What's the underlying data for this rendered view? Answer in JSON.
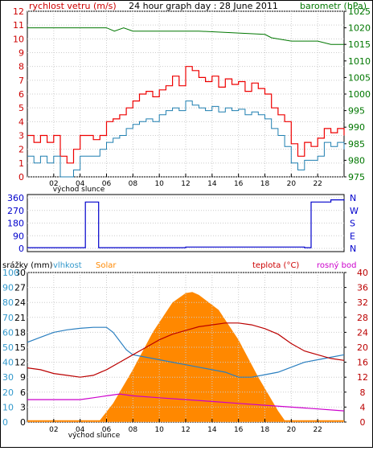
{
  "title": "24 hour graph day : 28 June 2011",
  "colors": {
    "wind_axis": "#cc0000",
    "baro_axis": "#007700",
    "gust": "#ee0000",
    "wind": "#1f7fb0",
    "baro": "#007700",
    "dir": "#0000cc",
    "rain_axis": "#3399cc",
    "humidity": "#2a7fc0",
    "solar": "#ff8800",
    "temp": "#bb0000",
    "dew": "#cc00cc",
    "grid": "#aaaaaa"
  },
  "chart_data": [
    {
      "type": "line",
      "labels": {
        "left": "rychlost vetru (m/s)",
        "right": "barometr (hPa)",
        "x_label": "východ slunce"
      },
      "x_ticks": [
        "02",
        "04",
        "06",
        "08",
        "10",
        "12",
        "14",
        "16",
        "18",
        "20",
        "22"
      ],
      "y_left_ticks": [
        "0",
        "1",
        "2",
        "3",
        "4",
        "5",
        "6",
        "7",
        "8",
        "9",
        "10",
        "11",
        "12"
      ],
      "y_right_ticks": [
        "975",
        "980",
        "985",
        "990",
        "995",
        "1000",
        "1005",
        "1010",
        "1015",
        "1020",
        "1025"
      ],
      "ylim_left": [
        0,
        12
      ],
      "ylim_right": [
        975,
        1025
      ],
      "xlim": [
        0,
        24
      ],
      "series": [
        {
          "key": "gust",
          "axis": "left",
          "x": [
            0,
            0.5,
            1,
            1.5,
            2,
            2.5,
            3,
            3.5,
            4,
            4.5,
            5,
            5.5,
            6,
            6.5,
            7,
            7.5,
            8,
            8.5,
            9,
            9.5,
            10,
            10.5,
            11,
            11.5,
            12,
            12.5,
            13,
            13.5,
            14,
            14.5,
            15,
            15.5,
            16,
            16.5,
            17,
            17.5,
            18,
            18.5,
            19,
            19.5,
            20,
            20.5,
            21,
            21.5,
            22,
            22.5,
            23,
            23.5,
            24
          ],
          "values": [
            3,
            2.5,
            3,
            2.5,
            3,
            1.5,
            1,
            2,
            3,
            3,
            2.7,
            3,
            4,
            4.2,
            4.5,
            5,
            5.5,
            6,
            6.2,
            5.8,
            6.3,
            6.6,
            7.3,
            6.6,
            8,
            7.7,
            7.2,
            6.9,
            7.3,
            6.5,
            7.1,
            6.7,
            6.9,
            6.2,
            6.8,
            6.4,
            6,
            5,
            4.5,
            4,
            2.4,
            1.5,
            2.5,
            2.2,
            2.8,
            3.5,
            3.2,
            3.5,
            3
          ]
        },
        {
          "key": "wind",
          "axis": "left",
          "x": [
            0,
            0.5,
            1,
            1.5,
            2,
            2.5,
            3,
            3.5,
            4,
            4.5,
            5,
            5.5,
            6,
            6.5,
            7,
            7.5,
            8,
            8.5,
            9,
            9.5,
            10,
            10.5,
            11,
            11.5,
            12,
            12.5,
            13,
            13.5,
            14,
            14.5,
            15,
            15.5,
            16,
            16.5,
            17,
            17.5,
            18,
            18.5,
            19,
            19.5,
            20,
            20.5,
            21,
            21.5,
            22,
            22.5,
            23,
            23.5,
            24
          ],
          "values": [
            1.5,
            1,
            1.5,
            1,
            1.5,
            0,
            0,
            0.5,
            1.5,
            1.5,
            1.5,
            2,
            2.5,
            2.8,
            3,
            3.5,
            3.8,
            4,
            4.2,
            4,
            4.5,
            4.8,
            5,
            4.8,
            5.5,
            5.2,
            5,
            4.8,
            5.1,
            4.7,
            5,
            4.8,
            4.9,
            4.5,
            4.7,
            4.5,
            4.2,
            3.5,
            3,
            2.2,
            1,
            0.5,
            1.2,
            1.2,
            1.5,
            2.5,
            2.2,
            2.5,
            2
          ]
        },
        {
          "key": "baro",
          "axis": "right",
          "x": [
            0,
            6,
            6.6,
            7.3,
            8,
            13,
            18,
            18.5,
            20,
            22,
            23,
            24
          ],
          "values": [
            1020,
            1020,
            1019,
            1020,
            1019,
            1019,
            1018,
            1017,
            1016,
            1016,
            1015,
            1015
          ]
        }
      ]
    },
    {
      "type": "line",
      "labels": {
        "right_axis": [
          "N",
          "W",
          "S",
          "E",
          "N"
        ]
      },
      "y_left_ticks": [
        "0",
        "90",
        "180",
        "270",
        "360"
      ],
      "ylim": [
        0,
        360
      ],
      "xlim": [
        0,
        24
      ],
      "series": [
        {
          "key": "dir",
          "x": [
            0,
            4.2,
            4.4,
            5.2,
            5.4,
            12,
            13,
            21,
            21.5,
            23,
            24
          ],
          "values": [
            5,
            5,
            330,
            330,
            5,
            10,
            10,
            5,
            330,
            345,
            340
          ]
        }
      ]
    },
    {
      "type": "line",
      "labels": {
        "rain": "srážky (mm)",
        "humidity": "vlhkost",
        "solar": "Solar",
        "temp": "teplota (°C)",
        "dew": "rosný bod",
        "x_label": "východ slunce"
      },
      "x_ticks": [
        "02",
        "04",
        "06",
        "08",
        "10",
        "12",
        "14",
        "16",
        "18",
        "20",
        "22"
      ],
      "y_rain_ticks": [
        "0",
        "3",
        "6",
        "9",
        "12",
        "15",
        "18",
        "21",
        "24",
        "27",
        "30"
      ],
      "y_hum_ticks": [
        "0",
        "10",
        "20",
        "30",
        "40",
        "50",
        "60",
        "70",
        "80",
        "90",
        "100"
      ],
      "y_temp_ticks": [
        "0",
        "4",
        "8",
        "12",
        "16",
        "20",
        "24",
        "28",
        "32",
        "36",
        "40"
      ],
      "ylim_rain": [
        0,
        30
      ],
      "ylim_temp": [
        0,
        40
      ],
      "xlim": [
        0,
        24
      ],
      "series": [
        {
          "key": "solar",
          "axis": "temp",
          "x": [
            0,
            5.5,
            6.5,
            8,
            9.5,
            11,
            12,
            12.5,
            13,
            14.5,
            16,
            17.5,
            19,
            19.5,
            20,
            24
          ],
          "values": [
            0.5,
            0.5,
            5,
            14,
            24,
            32,
            34.5,
            34.8,
            34,
            30,
            22,
            12,
            3,
            0.5,
            0.5,
            0.5
          ]
        },
        {
          "key": "humidity",
          "axis": "rain",
          "x": [
            0,
            1,
            2,
            3,
            4,
            5,
            6,
            6.5,
            7.5,
            8,
            9,
            10,
            11,
            12,
            13,
            14,
            15,
            16,
            17,
            18,
            19,
            20,
            21,
            22,
            23,
            24
          ],
          "values": [
            16,
            17,
            18,
            18.5,
            18.8,
            19,
            19,
            18,
            14.5,
            13.5,
            13,
            12.5,
            12,
            11.5,
            11,
            10.5,
            10,
            9,
            9,
            9.5,
            10,
            11,
            12,
            12.5,
            13,
            13.5
          ]
        },
        {
          "key": "temp",
          "axis": "temp",
          "x": [
            0,
            1,
            2,
            3,
            4,
            5,
            6,
            7,
            8,
            9,
            10,
            11,
            12,
            13,
            14,
            15,
            16,
            17,
            18,
            19,
            20,
            21,
            22,
            23,
            24
          ],
          "values": [
            14.5,
            14,
            13,
            12.5,
            12,
            12.5,
            14,
            16,
            18,
            20,
            22,
            23.5,
            24.5,
            25.5,
            26,
            26.5,
            26.5,
            26,
            25,
            23.5,
            21,
            19,
            18,
            17,
            16.5
          ]
        },
        {
          "key": "dew",
          "axis": "temp",
          "x": [
            0,
            2,
            4,
            5,
            6,
            7,
            8,
            10,
            12,
            14,
            16,
            18,
            20,
            22,
            24
          ],
          "values": [
            6,
            6,
            6,
            6.5,
            7,
            7.5,
            7,
            6.5,
            6,
            5.5,
            5,
            4.5,
            4,
            3.5,
            3
          ]
        }
      ]
    }
  ]
}
